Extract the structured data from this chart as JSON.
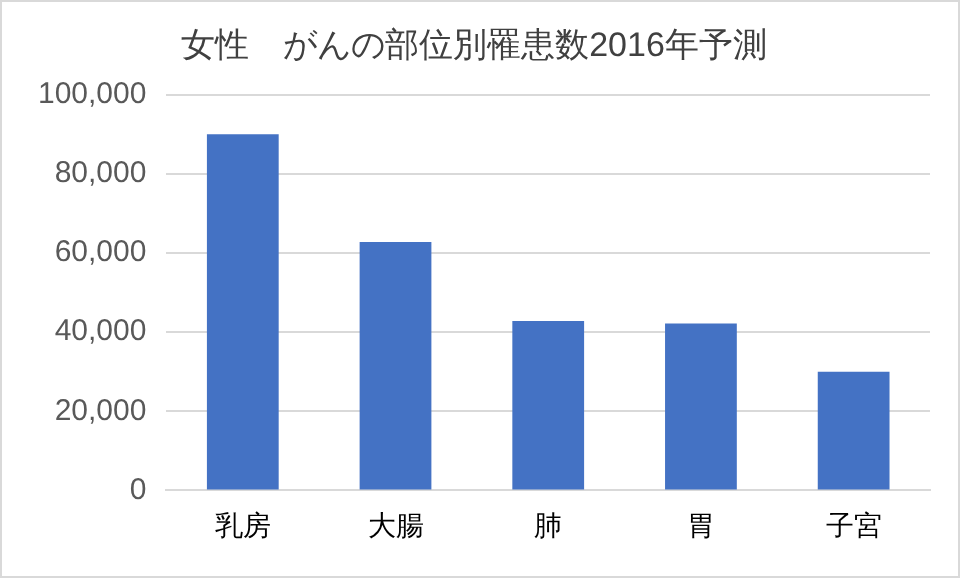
{
  "chart_data": {
    "type": "bar",
    "title": "女性　がんの部位別罹患数2016年予測",
    "categories": [
      "乳房",
      "大腸",
      "肺",
      "胃",
      "子宮"
    ],
    "values": [
      90000,
      62800,
      42800,
      42200,
      30000
    ],
    "color": "#4472c4",
    "ylim": [
      0,
      100000
    ],
    "yticks": [
      0,
      {
        "value": 20000,
        "label": "20,000"
      },
      {
        "value": 40000,
        "label": "40,000"
      },
      {
        "value": 60000,
        "label": "60,000"
      },
      {
        "value": 80000,
        "label": "80,000"
      },
      {
        "value": 100000,
        "label": "100,000"
      }
    ],
    "grid": "y",
    "legend": false
  }
}
